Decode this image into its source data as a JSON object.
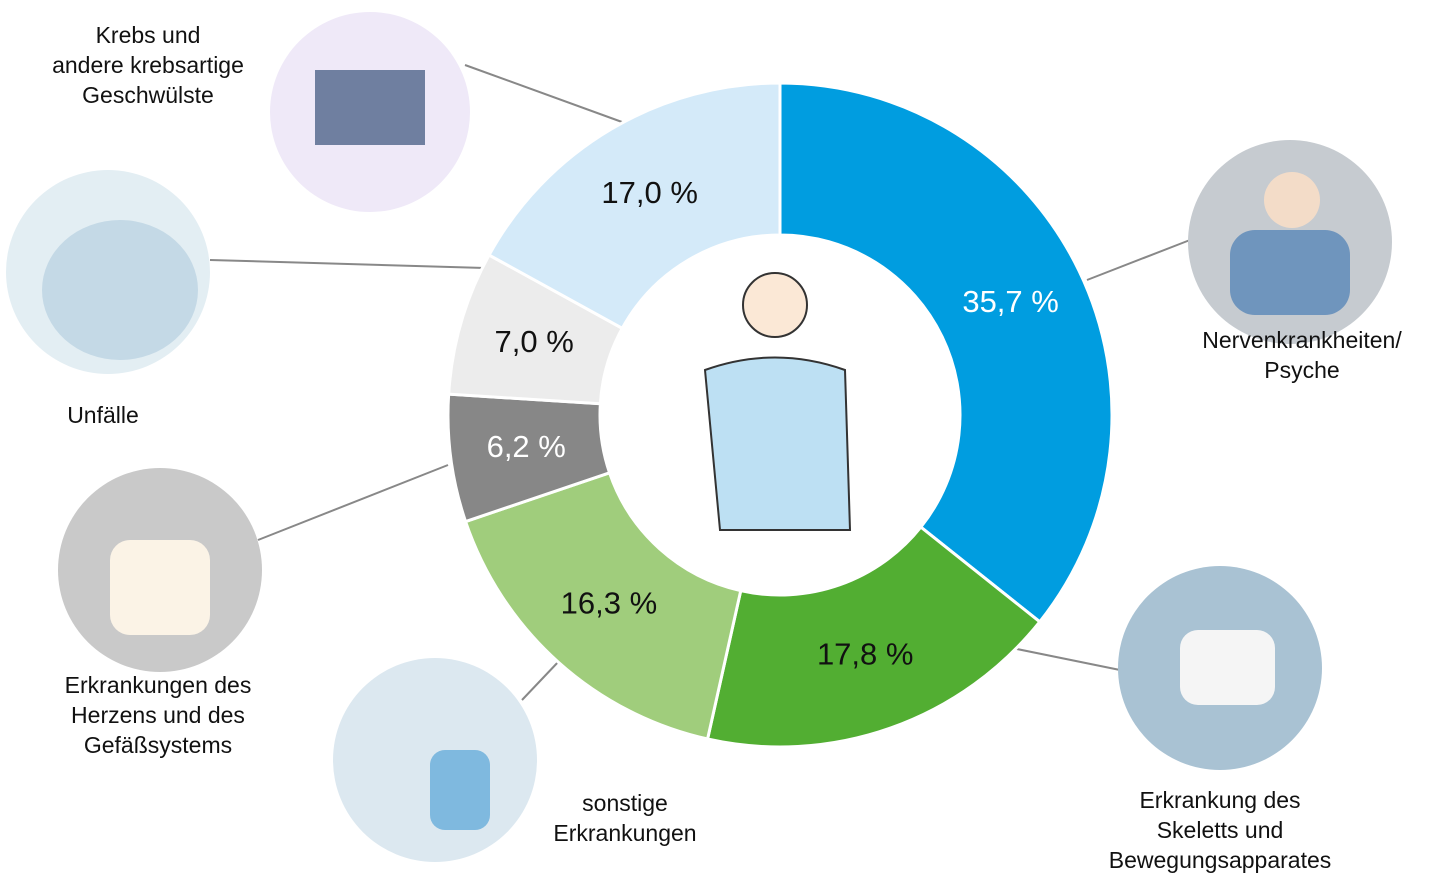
{
  "chart_data": {
    "type": "donut",
    "categories": [
      "Nervenkrankheiten/\nPsyche",
      "Erkrankung des\nSkeletts und\nBewegungsapparates",
      "sonstige\nErkrankungen",
      "Erkrankungen des\nHerzens und des\nGefäßsystems",
      "Unfälle",
      "Krebs und\nandere krebsartige\nGeschwülste"
    ],
    "values": [
      35.7,
      17.8,
      16.3,
      6.2,
      7.0,
      17.0
    ],
    "value_labels": [
      "35,7 %",
      "17,8 %",
      "16,3 %",
      "6,2 %",
      "7,0 %",
      "17,0 %"
    ],
    "colors": [
      "#009de0",
      "#52ae32",
      "#a0cd7c",
      "#878787",
      "#ececec",
      "#d4eaf9"
    ],
    "label_colors": [
      "#ffffff",
      "#111111",
      "#111111",
      "#ffffff",
      "#111111",
      "#111111"
    ]
  }
}
